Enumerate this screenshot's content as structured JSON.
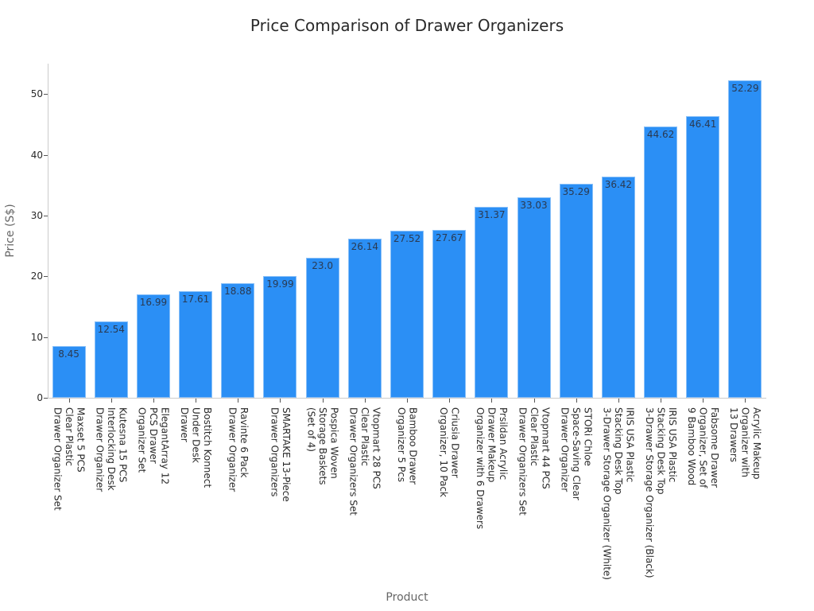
{
  "chart_data": {
    "type": "bar",
    "title": "Price Comparison of Drawer Organizers",
    "xlabel": "Product",
    "ylabel": "Price (S$)",
    "ylim": [
      0,
      55
    ],
    "yticks": [
      0,
      10,
      20,
      30,
      40,
      50
    ],
    "grid": false,
    "legend": null,
    "bar_color": "#2b8ff5",
    "categories": [
      "Maxset 5 PCS\nClear Plastic\nDrawer Organizer Set",
      "Kutesna 15 PCS\nInterlocking Desk\nDrawer Organizer",
      "ElegantArray 12\nPCS Drawer\nOrganizer Set",
      "Bostitch Konnect\nUnder Desk\nDrawer",
      "Ravinte 6 Pack\nDrawer Organizer",
      "SMARTAKE 13-Piece\nDrawer Organizers",
      "Pospica Woven\nStorage Baskets\n(Set of 4)",
      "Vtopmart 28 PCS\nClear Plastic\nDrawer Organizers Set",
      "Bamboo Drawer\nOrganizer 5 Pcs",
      "Criusia Drawer\nOrganizer, 10 Pack",
      "Prsildan Acrylic\nDrawer Makeup\nOrganizer with 6 Drawers",
      "Vtopmart 44 PCS\nClear Plastic\nDrawer Organizers Set",
      "STORi Chloe\nSpace-Saving Clear\nDrawer Organizer",
      "IRIS USA Plastic\nStacking Desk Top\n3-Drawer Storage Organizer (White)",
      "IRIS USA Plastic\nStacking Desk Top\n3-Drawer Storage Organizer (Black)",
      "Fabsome Drawer\nOrganizer, Set of\n9 Bamboo Wood",
      "Acrylic Makeup\nOrganizer with\n13 Drawers"
    ],
    "values": [
      8.45,
      12.54,
      16.99,
      17.61,
      18.88,
      19.99,
      23.0,
      26.14,
      27.52,
      27.67,
      31.37,
      33.03,
      35.29,
      36.42,
      44.62,
      46.41,
      52.29
    ],
    "value_labels": [
      "8.45",
      "12.54",
      "16.99",
      "17.61",
      "18.88",
      "19.99",
      "23.0",
      "26.14",
      "27.52",
      "27.67",
      "31.37",
      "33.03",
      "35.29",
      "36.42",
      "44.62",
      "46.41",
      "52.29"
    ]
  }
}
